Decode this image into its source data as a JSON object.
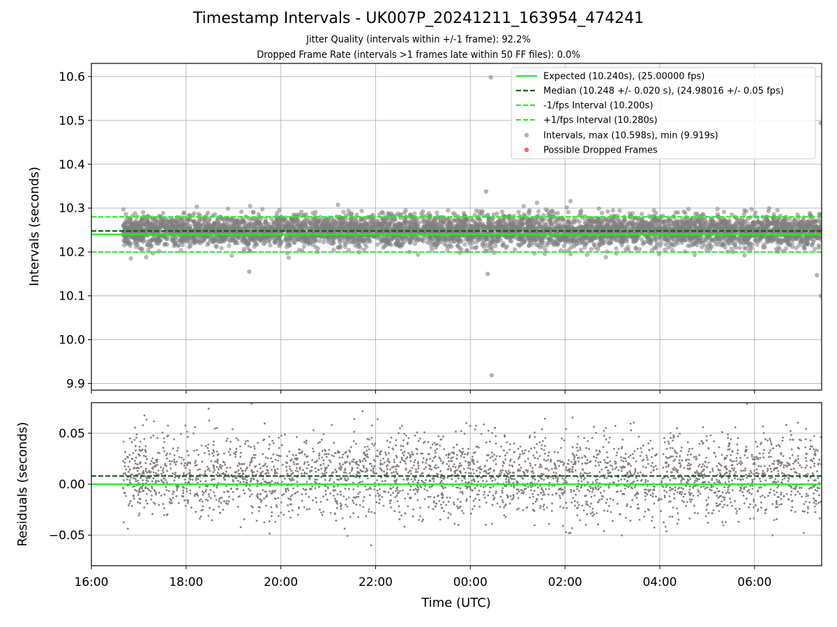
{
  "title": "Timestamp Intervals - UK007P_20241211_163954_474241",
  "subtitle_lines": [
    "Jitter Quality (intervals within +/-1 frame): 92.2%",
    "Dropped Frame Rate (intervals >1 frames late within 50 FF files): 0.0%"
  ],
  "colors": {
    "expected": "#22ee22",
    "median": "#006400",
    "fps_bounds": "#22ee22",
    "intervals": "#808080",
    "dropped": "#ee4444",
    "grid": "#b0b0b0"
  },
  "chart_data": [
    {
      "type": "scatter",
      "panel": "top",
      "xlabel": "",
      "ylabel": "Intervals (seconds)",
      "xlim": [
        "16:00",
        "07:25"
      ],
      "ylim": [
        9.885,
        10.63
      ],
      "y_ticks": [
        9.9,
        10.0,
        10.1,
        10.2,
        10.3,
        10.4,
        10.5,
        10.6
      ],
      "y_tick_labels": [
        "9.9",
        "10.0",
        "10.1",
        "10.2",
        "10.3",
        "10.4",
        "10.5",
        "10.6"
      ],
      "x_ticks": [
        "16:00",
        "18:00",
        "20:00",
        "22:00",
        "00:00",
        "02:00",
        "04:00",
        "06:00"
      ],
      "x_tick_labels": [],
      "grid": true,
      "legend_position": "top-right",
      "hlines": [
        {
          "name": "Expected (10.240s), (25.00000 fps)",
          "y": 10.24,
          "style": "solid",
          "color_key": "expected"
        },
        {
          "name": "Median (10.248 +/- 0.020 s), (24.98016 +/- 0.05 fps)",
          "y": 10.248,
          "style": "dashed",
          "color_key": "median"
        },
        {
          "name": "-1/fps Interval (10.200s)",
          "y": 10.2,
          "style": "dashed",
          "color_key": "fps_bounds"
        },
        {
          "name": "+1/fps Interval (10.280s)",
          "y": 10.28,
          "style": "dashed",
          "color_key": "fps_bounds"
        }
      ],
      "series": [
        {
          "name": "Intervals, max (10.598s), min (9.919s)",
          "color_key": "intervals",
          "time_range": [
            "16:40",
            "07:25"
          ],
          "center": 10.248,
          "spread_sd": 0.02,
          "approx_points": 5300
        },
        {
          "name": "Possible Dropped Frames",
          "color_key": "dropped",
          "values": []
        }
      ],
      "notable_points": [
        {
          "x": "00:26",
          "y": 10.598
        },
        {
          "x": "00:27",
          "y": 9.919
        },
        {
          "x": "00:20",
          "y": 10.338
        },
        {
          "x": "07:24",
          "y": 10.494
        },
        {
          "x": "07:24",
          "y": 10.1
        },
        {
          "x": "07:19",
          "y": 10.147
        },
        {
          "x": "00:22",
          "y": 10.15
        },
        {
          "x": "19:20",
          "y": 10.155
        }
      ]
    },
    {
      "type": "scatter",
      "panel": "bottom",
      "xlabel": "Time (UTC)",
      "ylabel": "Residuals (seconds)",
      "xlim": [
        "16:00",
        "07:25"
      ],
      "ylim": [
        -0.08,
        0.08
      ],
      "y_ticks": [
        -0.05,
        0.0,
        0.05
      ],
      "y_tick_labels": [
        "−0.05",
        "0.00",
        "0.05"
      ],
      "x_ticks": [
        "16:00",
        "18:00",
        "20:00",
        "22:00",
        "00:00",
        "02:00",
        "04:00",
        "06:00"
      ],
      "x_tick_labels": [
        "16:00",
        "18:00",
        "20:00",
        "22:00",
        "00:00",
        "02:00",
        "04:00",
        "06:00"
      ],
      "grid": true,
      "hlines": [
        {
          "y": 0.0,
          "style": "solid",
          "color_key": "expected"
        },
        {
          "y": 0.008,
          "style": "dashed",
          "color_key": "median"
        }
      ],
      "series": [
        {
          "name": "Residuals",
          "color_key": "intervals",
          "time_range": [
            "16:40",
            "07:25"
          ],
          "center": 0.008,
          "spread_sd": 0.02,
          "approx_points": 3200
        }
      ]
    }
  ]
}
